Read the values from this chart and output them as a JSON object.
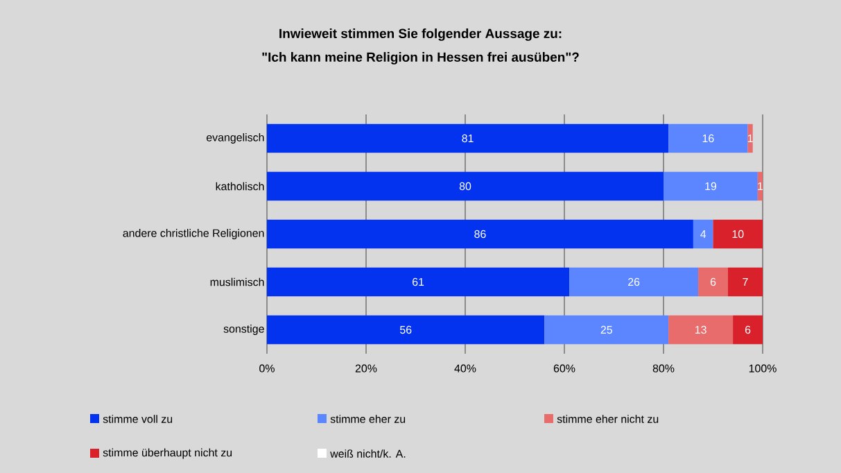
{
  "chart_data": {
    "type": "bar",
    "orientation": "horizontal",
    "stacked": true,
    "title": "Inwieweit stimmen Sie folgender Aussage zu:",
    "subtitle": "\"Ich kann meine Religion in Hessen frei ausüben\"?",
    "categories": [
      "evangelisch",
      "katholisch",
      "andere christliche Religionen",
      "muslimisch",
      "sonstige"
    ],
    "series": [
      {
        "name": "stimme voll zu",
        "color": "#0433f0",
        "values": [
          81,
          80,
          86,
          61,
          56
        ]
      },
      {
        "name": "stimme eher zu",
        "color": "#5b86ff",
        "values": [
          16,
          19,
          4,
          26,
          25
        ]
      },
      {
        "name": "stimme eher nicht zu",
        "color": "#e86c6c",
        "values": [
          1,
          1,
          null,
          6,
          13
        ]
      },
      {
        "name": "stimme überhaupt nicht zu",
        "color": "#d9212b",
        "values": [
          null,
          null,
          10,
          7,
          6
        ]
      },
      {
        "name": "weiß nicht/k. A.",
        "color": "#ffffff",
        "values": [
          null,
          null,
          null,
          null,
          null
        ]
      }
    ],
    "xlim": [
      0,
      100
    ],
    "xticks": [
      {
        "value": 0,
        "label": "0%"
      },
      {
        "value": 20,
        "label": "20%"
      },
      {
        "value": 40,
        "label": "40%"
      },
      {
        "value": 60,
        "label": "60%"
      },
      {
        "value": 80,
        "label": "80%"
      },
      {
        "value": 100,
        "label": "100%"
      }
    ],
    "grid": "x",
    "legend": "bottom",
    "data_labels": true
  }
}
